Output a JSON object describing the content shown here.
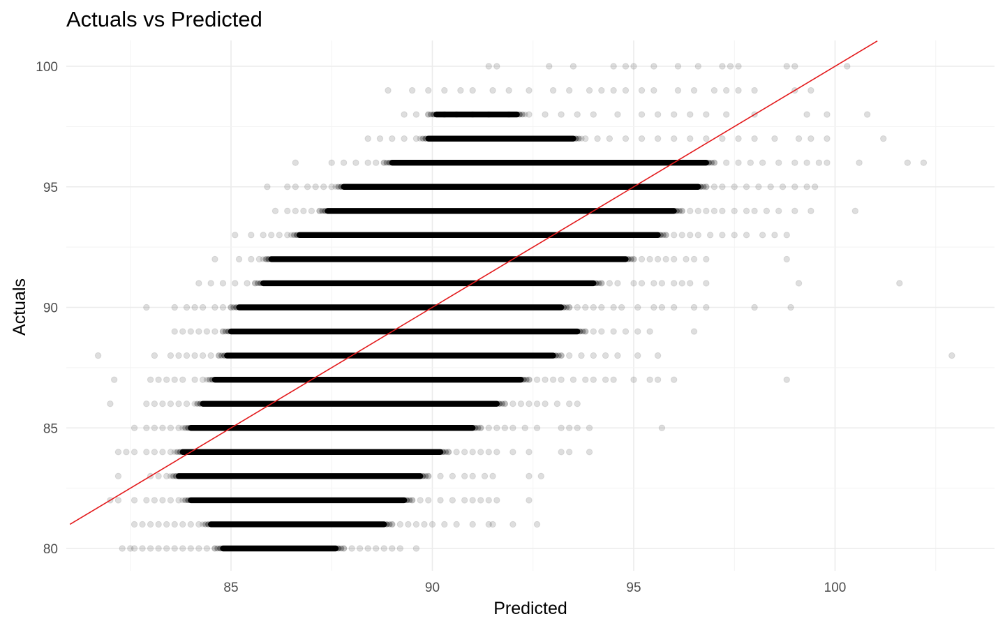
{
  "chart_data": {
    "type": "scatter",
    "title": "Actuals vs Predicted",
    "xlabel": "Predicted",
    "ylabel": "Actuals",
    "xlim": [
      81,
      104
    ],
    "ylim": [
      79.2,
      101
    ],
    "xticks": [
      85,
      90,
      95,
      100
    ],
    "yticks": [
      80,
      85,
      90,
      95,
      100
    ],
    "grid": true,
    "legend": "none",
    "point_color": "#000000",
    "point_alpha": 0.13,
    "reference_line": {
      "slope": 1,
      "intercept": 0,
      "color": "#e31a1c",
      "label": ""
    },
    "series": [
      {
        "name": "",
        "rows": [
          {
            "y": 80,
            "dense": [
              84.8,
              87.6
            ],
            "sparse_x": [
              82.3,
              82.5,
              82.6,
              82.8,
              83.0,
              83.2,
              83.4,
              83.6,
              83.8,
              84.0,
              84.2,
              84.4,
              84.6,
              87.8,
              88.0,
              88.2,
              88.4,
              88.6,
              88.8,
              89.0,
              89.2,
              89.6
            ]
          },
          {
            "y": 81,
            "dense": [
              84.5,
              88.8
            ],
            "sparse_x": [
              82.6,
              82.8,
              83.0,
              83.2,
              83.4,
              83.6,
              83.8,
              84.0,
              84.2,
              89.0,
              89.2,
              89.4,
              89.6,
              89.8,
              90.0,
              90.3,
              90.6,
              91.0,
              91.4,
              91.5,
              92.0,
              92.6
            ]
          },
          {
            "y": 82,
            "dense": [
              84.0,
              89.3
            ],
            "sparse_x": [
              82.0,
              82.2,
              82.6,
              82.9,
              83.1,
              83.3,
              83.5,
              83.7,
              89.5,
              89.7,
              89.9,
              90.2,
              90.5,
              90.8,
              91.0,
              91.2,
              91.4,
              91.6,
              92.4
            ]
          },
          {
            "y": 83,
            "dense": [
              83.7,
              89.7
            ],
            "sparse_x": [
              82.2,
              83.0,
              83.2,
              83.4,
              89.9,
              90.2,
              90.5,
              90.8,
              91.0,
              91.3,
              91.5,
              92.4,
              92.7
            ]
          },
          {
            "y": 84,
            "dense": [
              83.8,
              90.2
            ],
            "sparse_x": [
              82.2,
              82.4,
              82.6,
              82.9,
              83.1,
              83.3,
              83.5,
              90.4,
              90.6,
              90.8,
              91.0,
              91.2,
              91.4,
              91.6,
              92.0,
              92.4,
              93.2,
              93.4,
              93.9
            ]
          },
          {
            "y": 85,
            "dense": [
              84.0,
              91.0
            ],
            "sparse_x": [
              82.6,
              82.9,
              83.1,
              83.3,
              83.5,
              83.7,
              91.2,
              91.4,
              91.6,
              91.8,
              92.0,
              92.3,
              92.6,
              93.2,
              93.4,
              93.6,
              93.9,
              95.7
            ]
          },
          {
            "y": 86,
            "dense": [
              84.3,
              91.6
            ],
            "sparse_x": [
              82.0,
              82.9,
              83.1,
              83.3,
              83.5,
              83.7,
              83.9,
              91.8,
              92.0,
              92.2,
              92.4,
              92.6,
              92.8,
              93.1,
              93.4,
              93.6
            ]
          },
          {
            "y": 87,
            "dense": [
              84.6,
              92.2
            ],
            "sparse_x": [
              82.1,
              83.0,
              83.2,
              83.4,
              83.6,
              83.8,
              84.1,
              84.3,
              92.4,
              92.6,
              92.8,
              93.0,
              93.2,
              93.5,
              93.8,
              94.0,
              94.3,
              94.5,
              95.0,
              95.4,
              95.6,
              96.0,
              98.8
            ]
          },
          {
            "y": 88,
            "dense": [
              84.9,
              93.0
            ],
            "sparse_x": [
              81.7,
              83.1,
              83.5,
              83.7,
              83.9,
              84.1,
              84.3,
              84.5,
              84.7,
              93.2,
              93.4,
              93.7,
              94.0,
              94.3,
              94.6,
              95.1,
              95.6,
              102.9
            ]
          },
          {
            "y": 89,
            "dense": [
              85.0,
              93.6
            ],
            "sparse_x": [
              83.6,
              83.8,
              84.0,
              84.2,
              84.4,
              84.6,
              84.8,
              93.8,
              94.0,
              94.2,
              94.5,
              94.8,
              95.1,
              95.4,
              96.5
            ]
          },
          {
            "y": 90,
            "dense": [
              85.2,
              93.2
            ],
            "sparse_x": [
              82.9,
              83.6,
              83.9,
              84.1,
              84.3,
              84.6,
              84.8,
              85.0,
              93.4,
              93.6,
              93.8,
              94.0,
              94.2,
              94.5,
              94.7,
              95.1,
              95.5,
              95.7,
              96.0,
              96.5,
              96.8,
              98.0,
              98.9
            ]
          },
          {
            "y": 91,
            "dense": [
              85.8,
              94.0
            ],
            "sparse_x": [
              84.2,
              84.5,
              84.8,
              85.1,
              85.4,
              85.6,
              94.2,
              94.4,
              94.6,
              95.0,
              95.2,
              95.5,
              95.7,
              96.0,
              96.2,
              96.4,
              96.8,
              99.1,
              101.6
            ]
          },
          {
            "y": 92,
            "dense": [
              86.0,
              94.8
            ],
            "sparse_x": [
              84.6,
              85.2,
              85.5,
              85.7,
              85.9,
              95.0,
              95.2,
              95.4,
              95.6,
              95.8,
              96.0,
              96.3,
              96.5,
              96.8,
              98.8
            ]
          },
          {
            "y": 93,
            "dense": [
              86.7,
              95.6
            ],
            "sparse_x": [
              85.1,
              85.5,
              85.8,
              86.0,
              86.2,
              86.4,
              95.8,
              96.0,
              96.2,
              96.4,
              96.6,
              96.9,
              97.2,
              97.5,
              97.8,
              98.2,
              98.5,
              98.8
            ]
          },
          {
            "y": 94,
            "dense": [
              87.4,
              96.0
            ],
            "sparse_x": [
              86.1,
              86.4,
              86.6,
              86.8,
              87.0,
              87.2,
              96.2,
              96.4,
              96.6,
              96.8,
              97.0,
              97.2,
              97.5,
              97.8,
              98.0,
              98.3,
              98.6,
              99.0,
              99.4,
              100.5
            ]
          },
          {
            "y": 95,
            "dense": [
              87.8,
              96.6
            ],
            "sparse_x": [
              85.9,
              86.4,
              86.6,
              86.9,
              87.1,
              87.3,
              87.5,
              96.8,
              97.0,
              97.2,
              97.5,
              97.8,
              98.1,
              98.4,
              98.7,
              99.0,
              99.3,
              99.5
            ]
          },
          {
            "y": 96,
            "dense": [
              89.0,
              96.8
            ],
            "sparse_x": [
              86.6,
              87.5,
              87.8,
              88.1,
              88.4,
              88.6,
              88.8,
              97.0,
              97.3,
              97.6,
              97.9,
              98.2,
              98.6,
              99.0,
              99.3,
              99.6,
              99.8,
              100.6,
              101.8,
              102.2
            ]
          },
          {
            "y": 97,
            "dense": [
              89.9,
              93.5
            ],
            "sparse_x": [
              88.4,
              88.7,
              89.0,
              89.3,
              89.6,
              93.8,
              94.1,
              94.4,
              94.8,
              95.2,
              95.6,
              96.0,
              96.4,
              96.8,
              97.2,
              97.6,
              98.0,
              98.5,
              99.1,
              99.4,
              99.8,
              101.2
            ]
          },
          {
            "y": 98,
            "dense": [
              90.1,
              92.1
            ],
            "sparse_x": [
              89.3,
              89.6,
              89.9,
              90.3,
              90.6,
              91.0,
              91.4,
              91.9,
              92.4,
              92.8,
              93.2,
              93.6,
              94.0,
              94.6,
              95.2,
              95.6,
              96.0,
              96.4,
              96.8,
              97.3,
              98.0,
              99.3,
              99.8,
              100.8
            ]
          },
          {
            "y": 99,
            "dense": [],
            "sparse_x": [
              88.9,
              89.5,
              89.9,
              90.3,
              90.7,
              91.0,
              91.5,
              91.9,
              92.4,
              93.0,
              93.4,
              93.9,
              94.2,
              94.5,
              94.8,
              95.2,
              95.5,
              96.1,
              96.5,
              97.0,
              97.3,
              97.6,
              98.0,
              99.0,
              99.4
            ]
          },
          {
            "y": 100,
            "dense": [],
            "sparse_x": [
              91.4,
              91.6,
              92.9,
              93.5,
              94.5,
              94.8,
              95.0,
              95.5,
              96.1,
              96.6,
              97.2,
              97.4,
              97.6,
              98.8,
              99.0,
              100.3
            ]
          }
        ]
      }
    ]
  }
}
